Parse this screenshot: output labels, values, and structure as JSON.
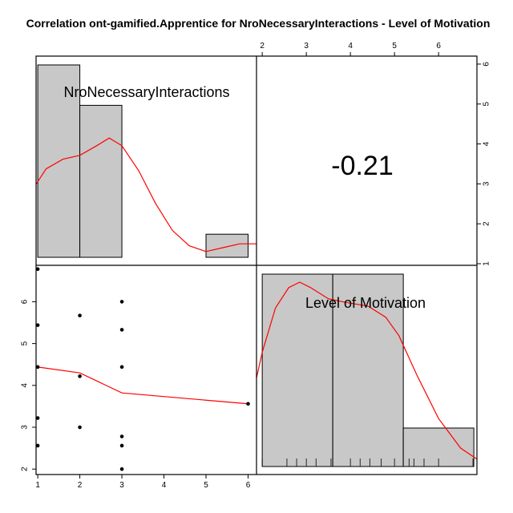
{
  "chart_data": {
    "type": "scatter",
    "title": "Correlation ont-gamified.Apprentice for NroNecessaryInteractions - Level of Motivation",
    "variables": [
      "NroNecessaryInteractions",
      "Level of Motivation"
    ],
    "correlation": "-0.21",
    "x_ticks": [
      "1",
      "2",
      "3",
      "4",
      "5",
      "6"
    ],
    "top_ticks": [
      "2",
      "3",
      "4",
      "5",
      "6"
    ],
    "right_ticks": [
      "1",
      "2",
      "3",
      "4",
      "5",
      "6"
    ],
    "left_ticks": [
      "2",
      "3",
      "4",
      "5",
      "6"
    ],
    "xlim": [
      0.96,
      6.2
    ],
    "ylim": [
      1.87,
      6.87
    ],
    "scatter_points": [
      {
        "x": 1,
        "y": 6.78
      },
      {
        "x": 1,
        "y": 5.44
      },
      {
        "x": 1,
        "y": 4.44
      },
      {
        "x": 1,
        "y": 3.22
      },
      {
        "x": 1,
        "y": 2.56
      },
      {
        "x": 2,
        "y": 5.67
      },
      {
        "x": 2,
        "y": 4.22
      },
      {
        "x": 2,
        "y": 3.0
      },
      {
        "x": 3,
        "y": 6.0
      },
      {
        "x": 3,
        "y": 5.33
      },
      {
        "x": 3,
        "y": 4.44
      },
      {
        "x": 3,
        "y": 2.78
      },
      {
        "x": 3,
        "y": 2.56
      },
      {
        "x": 3,
        "y": 2.0
      },
      {
        "x": 6,
        "y": 3.56
      }
    ],
    "smooth_line": [
      [
        1,
        4.44
      ],
      [
        2,
        4.3
      ],
      [
        3,
        3.82
      ],
      [
        6,
        3.56
      ]
    ],
    "hist_interactions": {
      "bins": [
        [
          1,
          2
        ],
        [
          2,
          3
        ],
        [
          5,
          6
        ]
      ],
      "heights": [
        1.0,
        0.79,
        0.12
      ]
    },
    "hist_motivation": {
      "bins": [
        [
          2,
          3.6
        ],
        [
          3.6,
          5.2
        ],
        [
          5.2,
          6.8
        ]
      ],
      "heights": [
        1.0,
        1.0,
        0.2
      ]
    },
    "rug_motivation": [
      2.0,
      2.56,
      2.78,
      3.0,
      3.22,
      3.56,
      4.0,
      4.22,
      4.44,
      4.7,
      5.0,
      5.33,
      5.44,
      5.67,
      6.0,
      6.78
    ],
    "density_interactions": [
      [
        0.96,
        0.38
      ],
      [
        1.2,
        0.46
      ],
      [
        1.6,
        0.51
      ],
      [
        2.0,
        0.53
      ],
      [
        2.4,
        0.58
      ],
      [
        2.7,
        0.62
      ],
      [
        3.0,
        0.58
      ],
      [
        3.4,
        0.45
      ],
      [
        3.8,
        0.28
      ],
      [
        4.2,
        0.14
      ],
      [
        4.6,
        0.06
      ],
      [
        5.0,
        0.03
      ],
      [
        5.4,
        0.05
      ],
      [
        5.8,
        0.07
      ],
      [
        6.2,
        0.07
      ]
    ],
    "density_motivation": [
      [
        1.87,
        0.48
      ],
      [
        2.0,
        0.62
      ],
      [
        2.3,
        0.86
      ],
      [
        2.6,
        0.97
      ],
      [
        2.85,
        1.0
      ],
      [
        3.1,
        0.97
      ],
      [
        3.5,
        0.91
      ],
      [
        3.9,
        0.89
      ],
      [
        4.4,
        0.87
      ],
      [
        4.8,
        0.81
      ],
      [
        5.1,
        0.71
      ],
      [
        5.5,
        0.5
      ],
      [
        6.0,
        0.26
      ],
      [
        6.5,
        0.1
      ],
      [
        6.87,
        0.04
      ]
    ],
    "colors": {
      "bar_fill": "#c8c8c8",
      "smooth_line": "#ff0000",
      "points": "#000000"
    }
  }
}
